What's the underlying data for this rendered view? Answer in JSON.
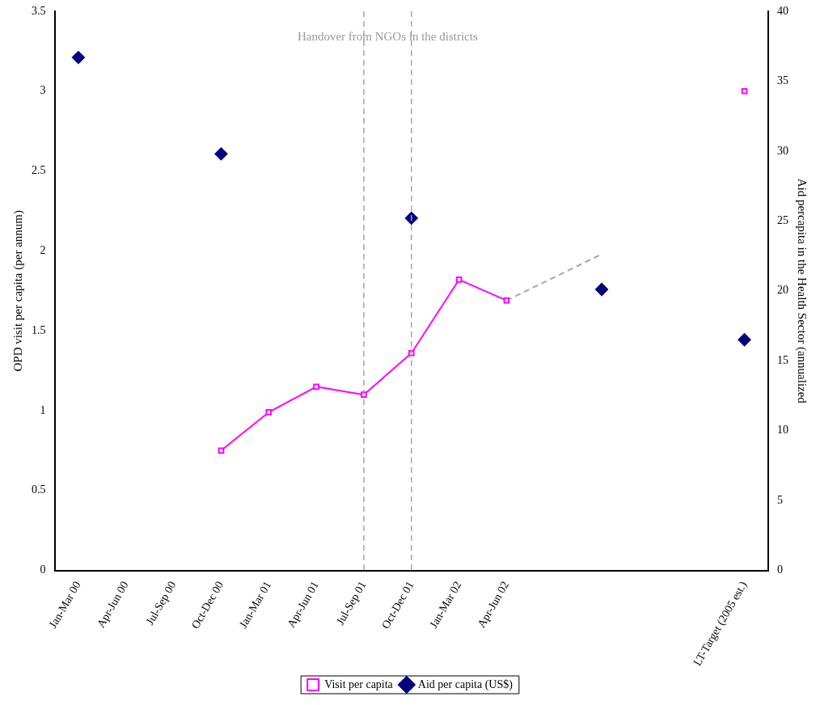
{
  "chart_data": {
    "type": "line",
    "categories": [
      "Jan-Mar 00",
      "Apr-Jun 00",
      "Jul-Sep 00",
      "Oct-Dec 00",
      "Jan-Mar 01",
      "Apr-Jun 01",
      "Jul-Sep 01",
      "Oct-Dec 01",
      "Jan-Mar 02",
      "Apr-Jun 02",
      null,
      null,
      null,
      null,
      "LT-Target (2005 est.)"
    ],
    "series": [
      {
        "name": "Visit per capita",
        "color": "#ff00ff",
        "marker": "square",
        "line_style": "solid",
        "values": [
          null,
          null,
          null,
          0.75,
          0.99,
          1.15,
          1.1,
          1.36,
          1.82,
          1.69,
          null,
          null,
          null,
          null,
          3.0
        ]
      },
      {
        "name": "Aid per capita (US$)",
        "type": "scatter",
        "axis": "y2",
        "color": "#000080",
        "marker": "diamond",
        "values": [
          36.7,
          null,
          null,
          29.8,
          null,
          null,
          null,
          25.2,
          null,
          null,
          null,
          20.1,
          null,
          null,
          16.5
        ]
      },
      {
        "color": "#a6a6a6",
        "marker": "none",
        "line_style": "dashed",
        "values": [
          null,
          null,
          null,
          null,
          null,
          null,
          null,
          null,
          null,
          1.69,
          null,
          1.98,
          null,
          null,
          null
        ]
      }
    ],
    "ylabel": "OPD visit per capita (per annum)",
    "y2label": "Aid percapita in the Health Sector (annualized",
    "ylim": [
      0,
      3.5
    ],
    "yticks": [
      0,
      0.5,
      1,
      1.5,
      2,
      2.5,
      3,
      3.5
    ],
    "y2lim": [
      0,
      40
    ],
    "y2ticks": [
      0,
      5,
      10,
      15,
      20,
      25,
      30,
      35,
      40
    ],
    "ref_lines": [
      {
        "axis": "x",
        "value": "Jul-Sep 01",
        "color": "#a6a6a6",
        "line_style": "dashed"
      },
      {
        "axis": "x",
        "value": "Oct-Dec 01",
        "color": "#a6a6a6",
        "line_style": "dashed"
      }
    ],
    "annotations": [
      "Handover from NGOs in the districts"
    ],
    "legend": "bottom",
    "grid": false
  }
}
